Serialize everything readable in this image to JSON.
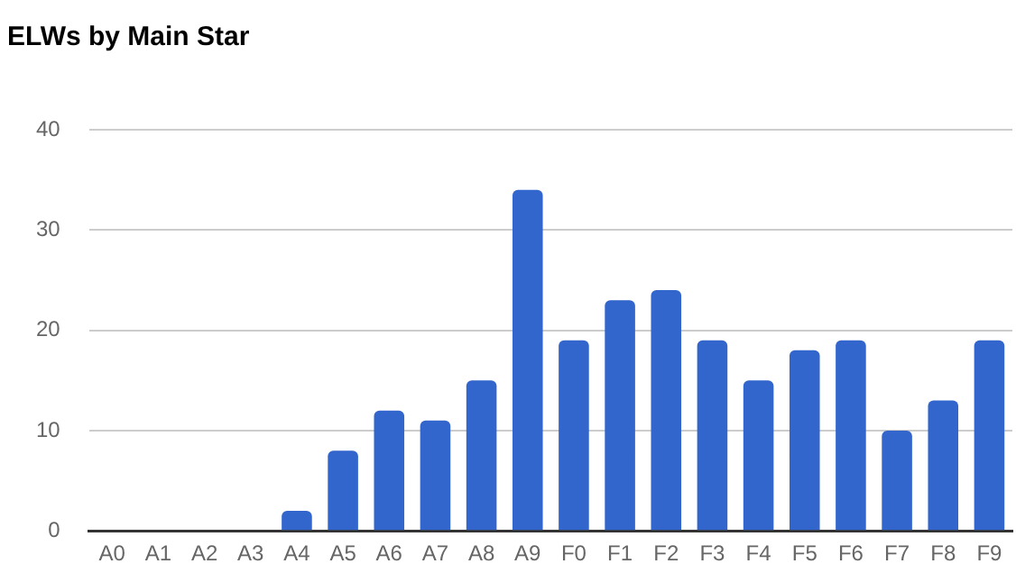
{
  "chart_data": {
    "type": "bar",
    "title": "ELWs by Main Star",
    "categories": [
      "A0",
      "A1",
      "A2",
      "A3",
      "A4",
      "A5",
      "A6",
      "A7",
      "A8",
      "A9",
      "F0",
      "F1",
      "F2",
      "F3",
      "F4",
      "F5",
      "F6",
      "F7",
      "F8",
      "F9"
    ],
    "values": [
      0,
      0,
      0,
      0,
      2,
      8,
      12,
      11,
      15,
      34,
      19,
      23,
      24,
      19,
      15,
      18,
      19,
      10,
      13,
      19
    ],
    "color": "#3366cc",
    "ylim": [
      0,
      40
    ],
    "yticks": [
      0,
      10,
      20,
      30,
      40
    ],
    "grid": "y",
    "legend": false
  }
}
